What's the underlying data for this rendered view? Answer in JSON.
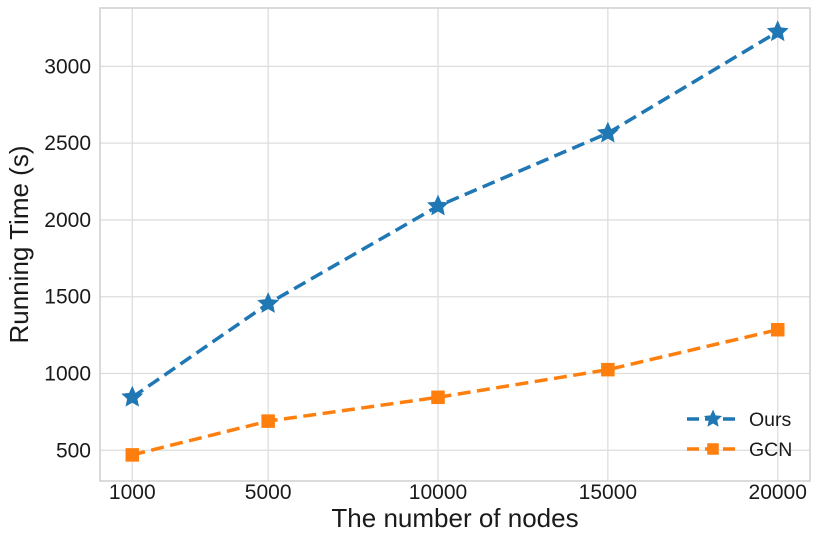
{
  "chart_data": {
    "type": "line",
    "title": "",
    "xlabel": "The number of nodes",
    "ylabel": "Running Time (s)",
    "x": [
      1000,
      5000,
      10000,
      15000,
      20000
    ],
    "x_tick_labels": [
      "1000",
      "5000",
      "10000",
      "15000",
      "20000"
    ],
    "y_ticks": [
      500,
      1000,
      1500,
      2000,
      2500,
      3000
    ],
    "y_tick_labels": [
      "500",
      "1000",
      "1500",
      "2000",
      "2500",
      "3000"
    ],
    "xlim": [
      50,
      20950
    ],
    "ylim": [
      300,
      3380
    ],
    "grid": true,
    "legend_position": "lower right",
    "series": [
      {
        "name": "Ours",
        "color": "#1f77b4",
        "marker": "star",
        "linestyle": "dashed",
        "values": [
          845,
          1455,
          2090,
          2565,
          3225
        ]
      },
      {
        "name": "GCN",
        "color": "#ff7f0e",
        "marker": "square",
        "linestyle": "dashed",
        "values": [
          470,
          690,
          845,
          1025,
          1285
        ]
      }
    ],
    "colors": {
      "grid": "#dddddd",
      "spine": "#cfcfcf",
      "text": "#1a1a1a",
      "background": "#ffffff"
    }
  }
}
